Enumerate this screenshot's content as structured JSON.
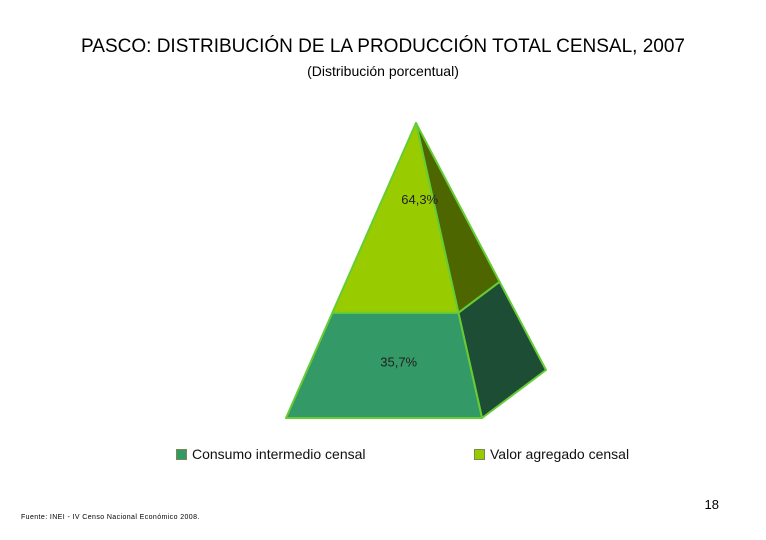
{
  "slide": {
    "page_number": "18",
    "source": "Fuente: INEI - IV Censo Nacional Económico 2008."
  },
  "chart_data": {
    "type": "pyramid",
    "title": "PASCO: DISTRIBUCIÓN DE LA PRODUCCIÓN TOTAL CENSAL, 2007",
    "subtitle": "(Distribución porcentual)",
    "series": [
      {
        "name": "Consumo intermedio censal",
        "value": 35.7,
        "label": "35,7%",
        "color": "#339966",
        "side_color": "#1e4d36"
      },
      {
        "name": "Valor agregado censal",
        "value": 64.3,
        "label": "64,3%",
        "color": "#99cc00",
        "side_color": "#4d6600"
      }
    ],
    "legend_position": "bottom",
    "order": "bottom-to-top"
  }
}
